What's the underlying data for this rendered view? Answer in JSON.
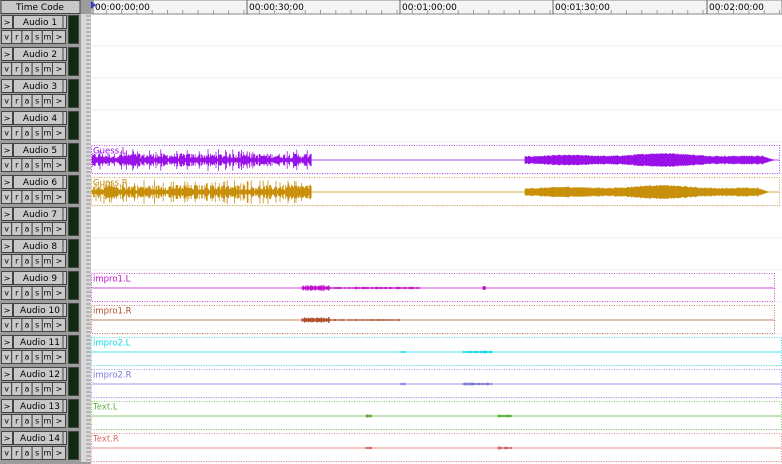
{
  "header": {
    "title": "Time Code"
  },
  "ruler": {
    "labels": [
      "00:00:00:00",
      "00:00:30:00",
      "00:01:00:00",
      "00:01:30:00",
      "00:02:00:00"
    ]
  },
  "controls": {
    "buttons": [
      "v",
      "r",
      "a",
      "s",
      "m"
    ],
    "arrow": ">"
  },
  "tracks": [
    {
      "name": "Audio 1"
    },
    {
      "name": "Audio 2"
    },
    {
      "name": "Audio 3"
    },
    {
      "name": "Audio 4"
    },
    {
      "name": "Audio 5",
      "clip": {
        "label": "Guess.L",
        "color": "#9a10e8"
      }
    },
    {
      "name": "Audio 6",
      "clip": {
        "label": "Guess.R",
        "color": "#c8900a"
      }
    },
    {
      "name": "Audio 7"
    },
    {
      "name": "Audio 8"
    },
    {
      "name": "Audio 9",
      "clip": {
        "label": "impro1.L",
        "color": "#c010c8"
      }
    },
    {
      "name": "Audio 10",
      "clip": {
        "label": "impro1.R",
        "color": "#b0502a"
      }
    },
    {
      "name": "Audio 11",
      "clip": {
        "label": "impro2.L",
        "color": "#10d8e8"
      }
    },
    {
      "name": "Audio 12",
      "clip": {
        "label": "impro2.R",
        "color": "#7a78e0"
      }
    },
    {
      "name": "Audio 13",
      "clip": {
        "label": "Text.L",
        "color": "#60b040"
      }
    },
    {
      "name": "Audio 14",
      "clip": {
        "label": "Text.R",
        "color": "#d86868"
      }
    }
  ]
}
